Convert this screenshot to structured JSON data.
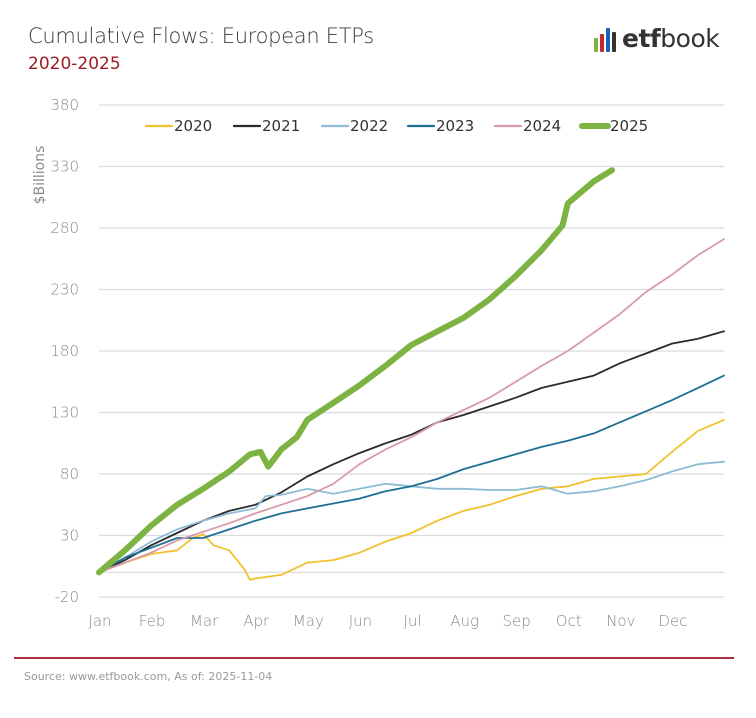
{
  "header": {
    "title": "Cumulative Flows: European ETPs",
    "subtitle": "2020-2025"
  },
  "logo": {
    "text_bold": "etf",
    "text_regular": "book",
    "bar_colors": [
      "#7cb342",
      "#c62828",
      "#1565c0",
      "#333333"
    ]
  },
  "footer": {
    "source": "Source: www.etfbook.com, As of: 2025-11-04"
  },
  "chart_data": {
    "type": "line",
    "title": "Cumulative Flows: European ETPs",
    "subtitle": "2020-2025",
    "xlabel": "",
    "ylabel": "$Billions",
    "ylim": [
      -20,
      380
    ],
    "yticks": [
      -20,
      30,
      80,
      130,
      180,
      230,
      280,
      330,
      380
    ],
    "xlim": [
      0,
      12
    ],
    "xticks": [
      "Jan",
      "Feb",
      "Mar",
      "Apr",
      "May",
      "Jun",
      "Jul",
      "Aug",
      "Sep",
      "Oct",
      "Nov",
      "Dec"
    ],
    "grid": true,
    "legend_position": "top",
    "series": [
      {
        "name": "2020",
        "color": "#f2c12e",
        "x": [
          0,
          0.5,
          1,
          1.5,
          1.8,
          2.0,
          2.2,
          2.5,
          2.8,
          2.9,
          3.0,
          3.5,
          4.0,
          4.5,
          5.0,
          5.5,
          6.0,
          6.5,
          7.0,
          7.5,
          8.0,
          8.5,
          9.0,
          9.5,
          10.0,
          10.5,
          11.0,
          11.5,
          12.0
        ],
        "values": [
          0,
          8,
          15,
          18,
          28,
          31,
          22,
          18,
          2,
          -6,
          -5,
          -2,
          8,
          10,
          16,
          25,
          32,
          42,
          50,
          55,
          62,
          68,
          70,
          76,
          78,
          80,
          98,
          115,
          124
        ]
      },
      {
        "name": "2021",
        "color": "#2b2b2b",
        "x": [
          0,
          0.5,
          1,
          1.5,
          2,
          2.5,
          3,
          3.5,
          4,
          4.5,
          5,
          5.5,
          6,
          6.5,
          7,
          7.5,
          8,
          8.5,
          9,
          9.5,
          10,
          10.5,
          11,
          11.5,
          12
        ],
        "values": [
          0,
          10,
          22,
          32,
          42,
          50,
          55,
          65,
          78,
          88,
          97,
          105,
          112,
          122,
          128,
          135,
          142,
          150,
          155,
          160,
          170,
          178,
          186,
          190,
          196
        ]
      },
      {
        "name": "2022",
        "color": "#8dbcd4",
        "x": [
          0,
          0.5,
          1,
          1.5,
          2,
          2.5,
          3,
          3.2,
          3.5,
          4,
          4.5,
          5,
          5.5,
          6,
          6.5,
          7,
          7.5,
          8,
          8.5,
          9,
          9.5,
          10,
          10.5,
          11,
          11.5,
          12
        ],
        "values": [
          0,
          12,
          25,
          35,
          42,
          48,
          52,
          62,
          63,
          68,
          64,
          68,
          72,
          70,
          68,
          68,
          67,
          67,
          70,
          64,
          66,
          70,
          75,
          82,
          88,
          90
        ]
      },
      {
        "name": "2023",
        "color": "#1f6f94",
        "x": [
          0,
          0.5,
          1,
          1.5,
          2,
          2.5,
          3,
          3.5,
          4,
          4.5,
          5,
          5.5,
          6,
          6.5,
          7,
          7.5,
          8,
          8.5,
          9,
          9.5,
          10,
          10.5,
          11,
          11.5,
          12
        ],
        "values": [
          0,
          12,
          20,
          28,
          28,
          35,
          42,
          48,
          52,
          56,
          60,
          66,
          70,
          76,
          84,
          90,
          96,
          102,
          107,
          113,
          122,
          131,
          140,
          150,
          160
        ]
      },
      {
        "name": "2024",
        "color": "#d99aaa",
        "x": [
          0,
          0.5,
          1,
          1.5,
          2,
          2.5,
          3,
          3.5,
          4,
          4.5,
          5,
          5.5,
          6,
          6.5,
          7,
          7.5,
          8,
          8.5,
          9,
          9.5,
          10,
          10.5,
          11,
          11.5,
          12
        ],
        "values": [
          0,
          8,
          16,
          26,
          33,
          40,
          48,
          55,
          62,
          72,
          88,
          100,
          110,
          122,
          132,
          142,
          155,
          168,
          180,
          195,
          210,
          228,
          242,
          258,
          271
        ]
      },
      {
        "name": "2025",
        "color": "#7cb342",
        "x": [
          0,
          0.5,
          1,
          1.5,
          2,
          2.5,
          2.9,
          3.1,
          3.25,
          3.5,
          3.8,
          4,
          4.5,
          5,
          5.5,
          6,
          6.5,
          7,
          7.5,
          8,
          8.5,
          8.9,
          9.0,
          9.5,
          9.85
        ],
        "values": [
          0,
          18,
          38,
          55,
          68,
          82,
          96,
          98,
          86,
          100,
          110,
          124,
          138,
          152,
          168,
          185,
          196,
          207,
          222,
          241,
          262,
          282,
          300,
          318,
          327
        ]
      }
    ]
  }
}
